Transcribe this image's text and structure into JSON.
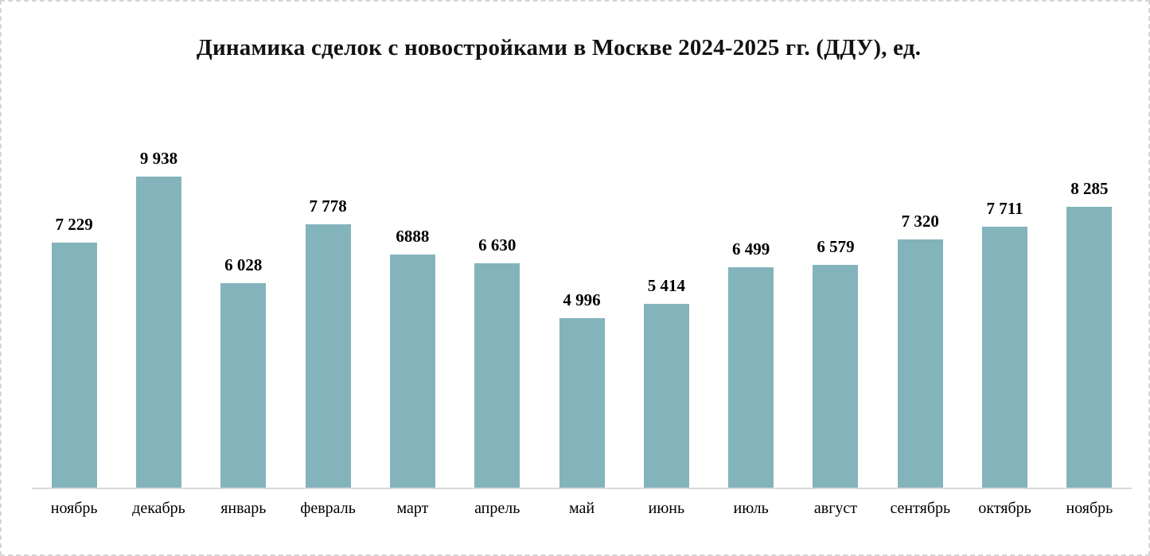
{
  "chart_data": {
    "type": "bar",
    "title": "Динамика сделок с новостройками в Москве 2024-2025 гг. (ДДУ), ед.",
    "categories": [
      "ноябрь",
      "декабрь",
      "январь",
      "февраль",
      "март",
      "апрель",
      "май",
      "июнь",
      "июль",
      "август",
      "сентябрь",
      "октябрь",
      "ноябрь"
    ],
    "values": [
      7229,
      9938,
      6028,
      7778,
      6888,
      6630,
      4996,
      5414,
      6499,
      6579,
      7320,
      7711,
      8285
    ],
    "value_labels": [
      "7 229",
      "9 938",
      "6 028",
      "7 778",
      "6888",
      "6 630",
      "4 996",
      "5 414",
      "6 499",
      "6 579",
      "7 320",
      "7 711",
      "8 285"
    ],
    "xlabel": "",
    "ylabel": "",
    "ylim": [
      0,
      10000
    ],
    "grid": false,
    "legend": "none",
    "data_labels": "above-bars",
    "bar_color": "#83b3bb",
    "axis_line_color": "#d9d9d9",
    "title_color": "#121212",
    "label_color": "#000000",
    "background_color": "#ffffff",
    "border_style": "dashed-light-gray"
  }
}
